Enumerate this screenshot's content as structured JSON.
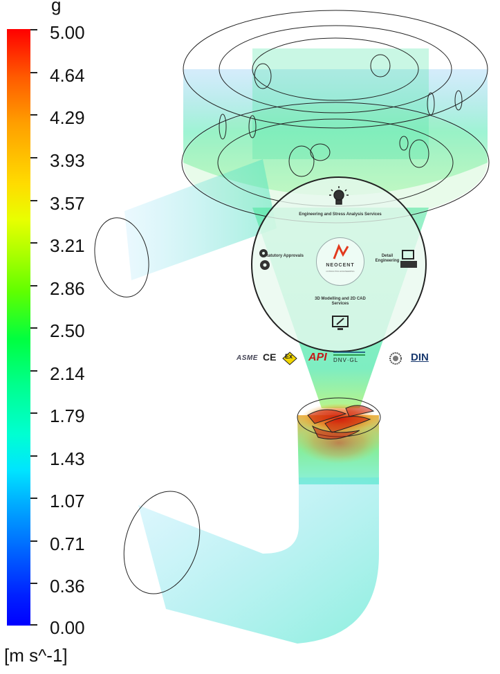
{
  "caption_fragment": "g",
  "legend": {
    "max": 5.0,
    "min": 0.0,
    "ticks": [
      "5.00",
      "4.64",
      "4.29",
      "3.93",
      "3.57",
      "3.21",
      "2.86",
      "2.50",
      "2.14",
      "1.79",
      "1.43",
      "1.07",
      "0.71",
      "0.36",
      "0.00"
    ],
    "units": "[m s^-1]"
  },
  "infographic": {
    "top": "Engineering and Stress Analysis Services",
    "left": "Statutory Approvals",
    "right": "Detail Engineering",
    "bottom": "3D Modelling and 2D CAD Services",
    "brand": "NEOCENT",
    "brand_sub": "CONSULTING ENGINEERING"
  },
  "certifications": {
    "asme": "ASME",
    "ce": "CE",
    "ex": "Ex",
    "api": "API",
    "dnv": "DNV·GL",
    "din": "DIN"
  },
  "colors": {
    "flow": "#36e8a0",
    "high_velocity": "#e63a12",
    "outline": "#222222"
  }
}
